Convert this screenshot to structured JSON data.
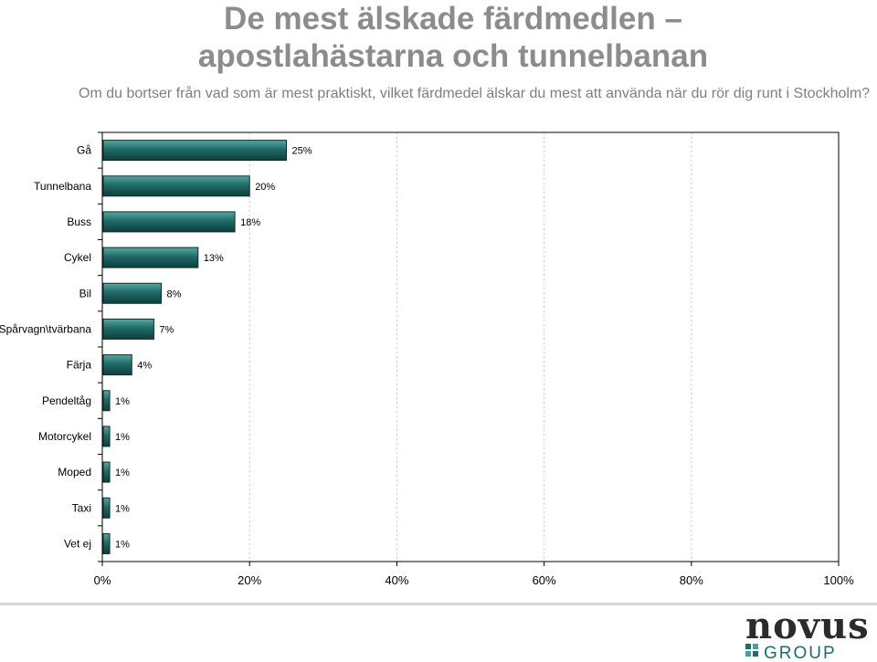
{
  "title_line1": "De mest älskade färdmedlen –",
  "title_line2": "apostlahästarna och tunnelbanan",
  "subtitle": "Om du bortser från vad som är mest praktiskt, vilket färdmedel älskar du mest att använda när du rör dig runt i Stockholm?",
  "logo": {
    "word": "novus",
    "group": "GROUP",
    "colors": {
      "dark": "#2b2b2b",
      "teal": "#1b6e6a",
      "tealLight": "#3fa29c"
    }
  },
  "chart_data": {
    "type": "bar",
    "orientation": "horizontal",
    "categories": [
      "Gå",
      "Tunnelbana",
      "Buss",
      "Cykel",
      "Bil",
      "Spårvagn\\tvärbana",
      "Färja",
      "Pendeltåg",
      "Motorcykel",
      "Moped",
      "Taxi",
      "Vet ej"
    ],
    "values": [
      25,
      20,
      18,
      13,
      8,
      7,
      4,
      1,
      1,
      1,
      1,
      1
    ],
    "data_labels": [
      "25%",
      "20%",
      "18%",
      "13%",
      "8%",
      "7%",
      "4%",
      "1%",
      "1%",
      "1%",
      "1%",
      "1%"
    ],
    "xlim": [
      0,
      100
    ],
    "x_ticks": [
      0,
      20,
      40,
      60,
      80,
      100
    ],
    "x_tick_labels": [
      "0%",
      "20%",
      "40%",
      "60%",
      "80%",
      "100%"
    ],
    "grid": "vertical dashed",
    "legend": "none",
    "bar_color": "#1f6b68"
  }
}
